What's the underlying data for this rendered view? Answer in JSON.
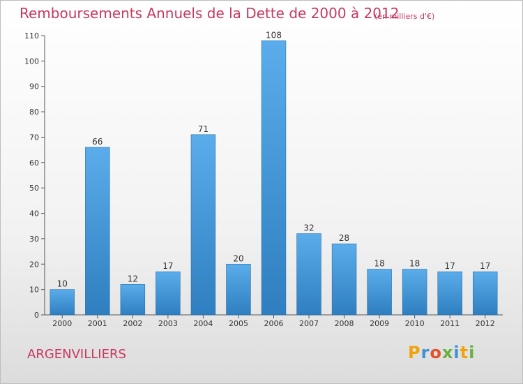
{
  "title": "Remboursements Annuels de la Dette de 2000 à 2012",
  "subtitle": "(en milliers d'€)",
  "commune": "ARGENVILLIERS",
  "logo": "Proxiti",
  "colors": {
    "bar": "#3d93d6",
    "title": "#c8385f"
  },
  "chart_data": {
    "type": "bar",
    "categories": [
      "2000",
      "2001",
      "2002",
      "2003",
      "2004",
      "2005",
      "2006",
      "2007",
      "2008",
      "2009",
      "2010",
      "2011",
      "2012"
    ],
    "values": [
      10,
      66,
      12,
      17,
      71,
      20,
      108,
      32,
      28,
      18,
      18,
      17,
      17
    ],
    "title": "Remboursements Annuels de la Dette de 2000 à 2012",
    "unit": "(en milliers d'€)",
    "ylim": [
      0,
      110
    ],
    "yticks": [
      0,
      10,
      20,
      30,
      40,
      50,
      60,
      70,
      80,
      90,
      100,
      110
    ],
    "grid": false,
    "data_labels": true
  }
}
